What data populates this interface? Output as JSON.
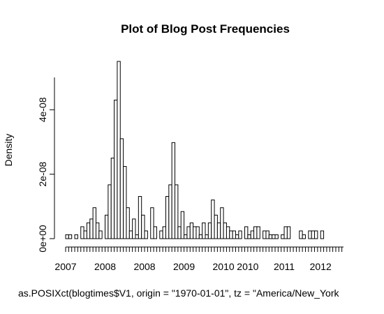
{
  "chart_data": {
    "type": "bar",
    "title": "Plot of Blog Post Frequencies",
    "xlabel": "as.POSIXct(blogtimes$V1, origin = \"1970-01-01\", tz = \"America/New_York",
    "ylabel": "Density",
    "y_ticks": [
      {
        "value": 0,
        "label": "0e+00"
      },
      {
        "value": 2e-08,
        "label": "2e-08"
      },
      {
        "value": 4e-08,
        "label": "4e-08"
      }
    ],
    "x_tick_labels": [
      "2007",
      "2008",
      "2008",
      "2009",
      "2010",
      "2010",
      "2011",
      "2012"
    ],
    "ylim": [
      0,
      5.5e-08
    ],
    "bins": 92,
    "values": [
      1.2e-09,
      1.2e-09,
      0,
      1.2e-09,
      0,
      3.7e-09,
      2.4e-09,
      4.9e-09,
      6.1e-09,
      9.6e-09,
      4.9e-09,
      2.4e-09,
      0,
      7.3e-09,
      1.67e-08,
      2.5e-08,
      4.3e-08,
      5.5e-08,
      3.1e-08,
      2.24e-08,
      9.6e-09,
      2.4e-09,
      6.1e-09,
      1.2e-09,
      1.31e-08,
      7.3e-09,
      2.4e-09,
      0,
      9.6e-09,
      3.7e-09,
      0,
      2.4e-09,
      3.7e-09,
      1.31e-08,
      1.67e-08,
      2.98e-08,
      1.67e-08,
      3.7e-09,
      8.4e-09,
      1.2e-09,
      3.7e-09,
      4.9e-09,
      3.7e-09,
      3.7e-09,
      1.2e-09,
      4.9e-09,
      1.2e-09,
      4.9e-09,
      1.2e-08,
      7.3e-09,
      4.9e-09,
      9.6e-09,
      4.9e-09,
      3.7e-09,
      2.4e-09,
      2.4e-09,
      1.2e-09,
      2.4e-09,
      0,
      3.7e-09,
      1.2e-09,
      2.4e-09,
      3.7e-09,
      3.7e-09,
      0,
      2.4e-09,
      2.4e-09,
      1.2e-09,
      1.2e-09,
      1.2e-09,
      0,
      1.2e-09,
      3.7e-09,
      3.7e-09,
      0,
      0,
      0,
      2.4e-09,
      1.2e-09,
      0,
      2.4e-09,
      2.4e-09,
      2.4e-09,
      0,
      2.4e-09,
      0,
      0,
      0,
      0,
      0,
      0,
      0
    ]
  }
}
